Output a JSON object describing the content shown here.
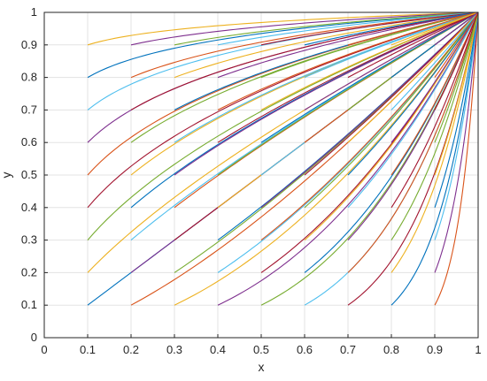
{
  "chart_data": {
    "type": "line",
    "title": "",
    "xlabel": "x",
    "ylabel": "y",
    "xlim": [
      0,
      1
    ],
    "ylim": [
      0,
      1
    ],
    "grid": true,
    "legend": "none",
    "xticks": [
      "0",
      "0.1",
      "0.2",
      "0.3",
      "0.4",
      "0.5",
      "0.6",
      "0.7",
      "0.8",
      "0.9",
      "1"
    ],
    "yticks": [
      "0",
      "0.1",
      "0.2",
      "0.3",
      "0.4",
      "0.5",
      "0.6",
      "0.7",
      "0.8",
      "0.9",
      "1"
    ],
    "curve_family": "trajectories from each grid start point (x0, y0) on the 0.1 lattice to (1, 1)",
    "start_x": [
      0.1,
      0.2,
      0.3,
      0.4,
      0.5,
      0.6,
      0.7,
      0.8,
      0.9
    ],
    "start_y": [
      0.1,
      0.2,
      0.3,
      0.4,
      0.5,
      0.6,
      0.7,
      0.8,
      0.9
    ],
    "end_point": [
      1,
      1
    ],
    "color_cycle": [
      "#0072bd",
      "#d95319",
      "#edb120",
      "#7e2f8e",
      "#77ac30",
      "#4dbeee",
      "#a2142f"
    ]
  }
}
